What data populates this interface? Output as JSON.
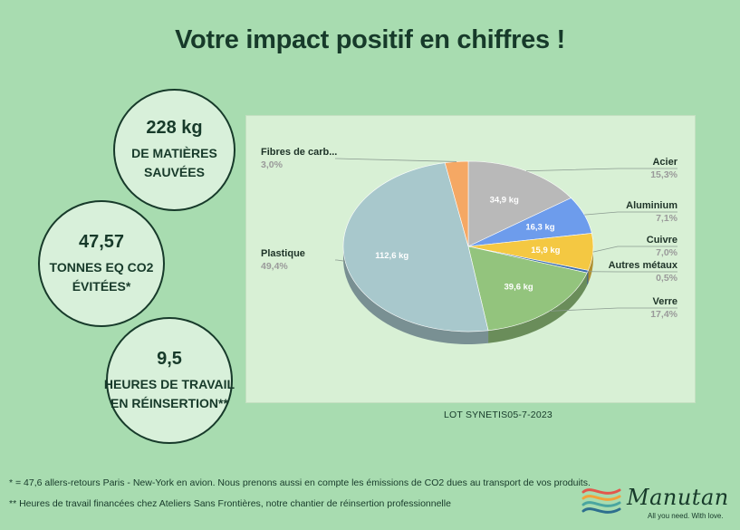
{
  "title": "Votre impact positif en chiffres !",
  "stats": [
    {
      "value": "228 kg",
      "label": "DE MATIÈRES SAUVÉES"
    },
    {
      "value": "47,57",
      "label": "TONNES EQ CO2 ÉVITÉES*"
    },
    {
      "value": "9,5",
      "label": "HEURES DE TRAVAIL EN RÉINSERTION**"
    }
  ],
  "chart_data": {
    "type": "pie",
    "title": "",
    "slices": [
      {
        "label": "Acier",
        "pct": "15,3%",
        "value_label": "34,9 kg",
        "value": 34.9,
        "color": "#b9b9b9"
      },
      {
        "label": "Aluminium",
        "pct": "7,1%",
        "value_label": "16,3 kg",
        "value": 16.3,
        "color": "#6d9cec"
      },
      {
        "label": "Cuivre",
        "pct": "7,0%",
        "value_label": "15,9 kg",
        "value": 15.9,
        "color": "#f4c842"
      },
      {
        "label": "Autres métaux",
        "pct": "0,5%",
        "value_label": "",
        "value": 1.1,
        "color": "#3f6fae"
      },
      {
        "label": "Verre",
        "pct": "17,4%",
        "value_label": "39,6 kg",
        "value": 39.6,
        "color": "#93c47d"
      },
      {
        "label": "Plastique",
        "pct": "49,4%",
        "value_label": "112,6 kg",
        "value": 112.6,
        "color": "#a8c8cc"
      },
      {
        "label": "Fibres de carb...",
        "pct": "3,0%",
        "value_label": "",
        "value": 6.8,
        "color": "#f5a864"
      }
    ]
  },
  "lot": "LOT SYNETIS05-7-2023",
  "footnotes": [
    "* = 47,6 allers-retours Paris - New-York en avion. Nous prenons aussi en compte les émissions de CO2 dues au transport de vos produits.",
    "** Heures de travail financées chez Ateliers Sans Frontières, notre chantier de réinsertion professionnelle"
  ],
  "logo": {
    "name": "Manutan",
    "tagline": "All you need. With love.",
    "colors": [
      "#e2584c",
      "#f2a23a",
      "#4aa6a0",
      "#2e6f8e"
    ]
  }
}
